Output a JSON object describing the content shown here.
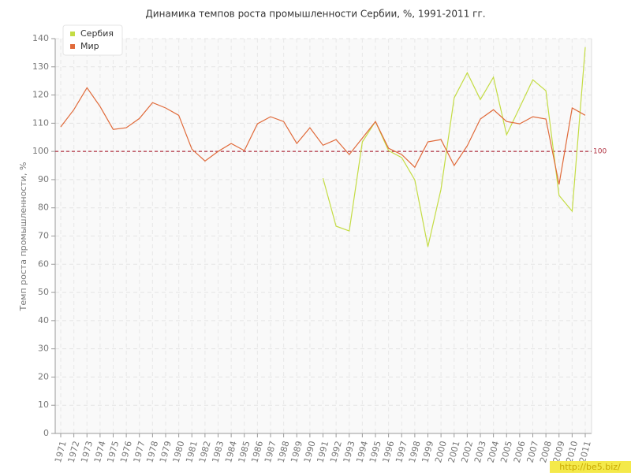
{
  "chart_data": {
    "type": "line",
    "title": "Динамика темпов роста промышленности Сербии, %, 1991-2011 гг.",
    "y_label": "Темп роста промышленности, %",
    "categories": [
      "1971",
      "1972",
      "1973",
      "1974",
      "1975",
      "1976",
      "1977",
      "1978",
      "1979",
      "1980",
      "1981",
      "1982",
      "1983",
      "1984",
      "1985",
      "1986",
      "1987",
      "1988",
      "1989",
      "1990",
      "1991",
      "1992",
      "1993",
      "1994",
      "1995",
      "1996",
      "1997",
      "1998",
      "1999",
      "2000",
      "2001",
      "2002",
      "2003",
      "2004",
      "2005",
      "2006",
      "2007",
      "2008",
      "2009",
      "2010",
      "2011"
    ],
    "series": [
      {
        "name": "Сербия",
        "color": "#c4dc44",
        "values": [
          null,
          null,
          null,
          null,
          null,
          null,
          null,
          null,
          null,
          null,
          null,
          null,
          null,
          null,
          null,
          null,
          null,
          null,
          null,
          null,
          90.5,
          73.5,
          71.8,
          103.4,
          110.6,
          100.3,
          97.8,
          89.9,
          66.2,
          86.6,
          119,
          127.9,
          118.4,
          126.3,
          105.9,
          115.6,
          125.4,
          121.5,
          84.4,
          78.8,
          136.9
        ]
      },
      {
        "name": "Мир",
        "color": "#e06a3a",
        "values": [
          108.7,
          114.8,
          122.6,
          115.9,
          107.8,
          108.4,
          111.7,
          117.3,
          115.4,
          112.8,
          100.8,
          96.6,
          100,
          102.8,
          100.3,
          109.8,
          112.3,
          110.6,
          102.8,
          108.4,
          102.2,
          104.2,
          98.9,
          104.7,
          110.6,
          101.1,
          98.9,
          94.4,
          103.4,
          104.2,
          95,
          102,
          111.5,
          114.8,
          110.6,
          109.8,
          112.3,
          111.5,
          88.3,
          115.4,
          112.8
        ]
      }
    ],
    "ylim": [
      0,
      140
    ],
    "yticks": [
      0,
      10,
      20,
      30,
      40,
      50,
      60,
      70,
      80,
      90,
      100,
      110,
      120,
      130,
      140
    ],
    "grid": true,
    "legend": "top-left",
    "reference_line": 100,
    "reference_color": "#b03040",
    "watermark": "http://be5.biz/"
  }
}
